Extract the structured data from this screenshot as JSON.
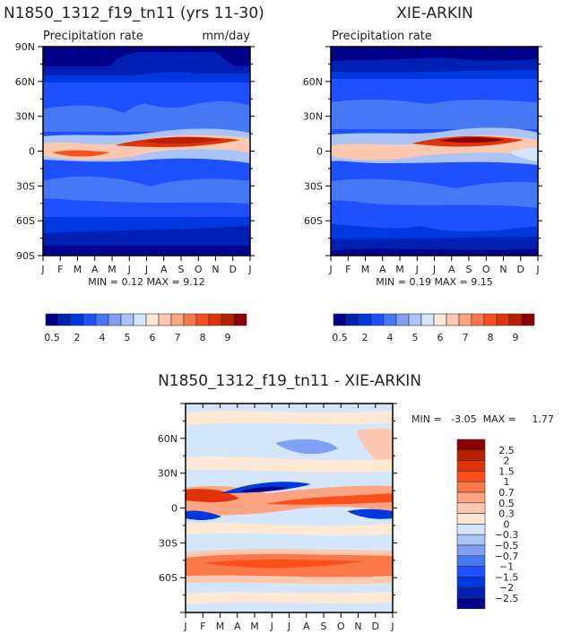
{
  "colors": {
    "levels": [
      "#00008a",
      "#0020b4",
      "#0038e0",
      "#1e50ff",
      "#4678f5",
      "#7fa0f5",
      "#aac4f8",
      "#d4e6fc",
      "#fee8d4",
      "#fdc8b0",
      "#fca482",
      "#fb7848",
      "#fb4f1c",
      "#e03408",
      "#b81e00",
      "#8b0000"
    ]
  },
  "chart_data": [
    {
      "type": "heatmap",
      "title": "N1850_1312_f19_tn11 (yrs 11-30)",
      "subtitle_left": "Precipitation rate",
      "subtitle_right": "mm/day",
      "x_ticks": [
        "J",
        "F",
        "M",
        "A",
        "M",
        "J",
        "J",
        "A",
        "S",
        "O",
        "N",
        "D",
        "J"
      ],
      "y_ticks": [
        "90N",
        "60N",
        "30N",
        "0",
        "30S",
        "60S",
        "90S"
      ],
      "stats": "MIN =    0.12  MAX =     9.12",
      "min": 0.12,
      "max": 9.12,
      "colorbar_labels": [
        "0.5",
        "2",
        "4",
        "5",
        "6",
        "7",
        "8",
        "9"
      ]
    },
    {
      "type": "heatmap",
      "title": "XIE-ARKIN",
      "subtitle_left": "Precipitation rate",
      "x_ticks": [
        "J",
        "F",
        "M",
        "A",
        "M",
        "J",
        "J",
        "A",
        "S",
        "O",
        "N",
        "D",
        "J"
      ],
      "y_ticks": [
        "60N",
        "30N",
        "0",
        "30S",
        "60S"
      ],
      "stats": "MIN =    0.19  MAX =     9.15",
      "min": 0.19,
      "max": 9.15,
      "colorbar_labels": [
        "0.5",
        "2",
        "4",
        "5",
        "6",
        "7",
        "8",
        "9"
      ]
    },
    {
      "type": "heatmap",
      "title": "N1850_1312_f19_tn11 - XIE-ARKIN",
      "x_ticks": [
        "J",
        "F",
        "M",
        "A",
        "M",
        "J",
        "J",
        "A",
        "S",
        "O",
        "N",
        "D",
        "J"
      ],
      "y_ticks": [
        "60N",
        "30N",
        "0",
        "30S",
        "60S"
      ],
      "stats": "MIN =   -3.05  MAX =     1.77",
      "min": -3.05,
      "max": 1.77,
      "colorbar_labels": [
        "2.5",
        "2",
        "1.5",
        "1",
        "0.7",
        "0.5",
        "0.3",
        "0",
        "-0.3",
        "-0.5",
        "-0.7",
        "-1",
        "-1.5",
        "-2",
        "-2.5"
      ]
    }
  ]
}
